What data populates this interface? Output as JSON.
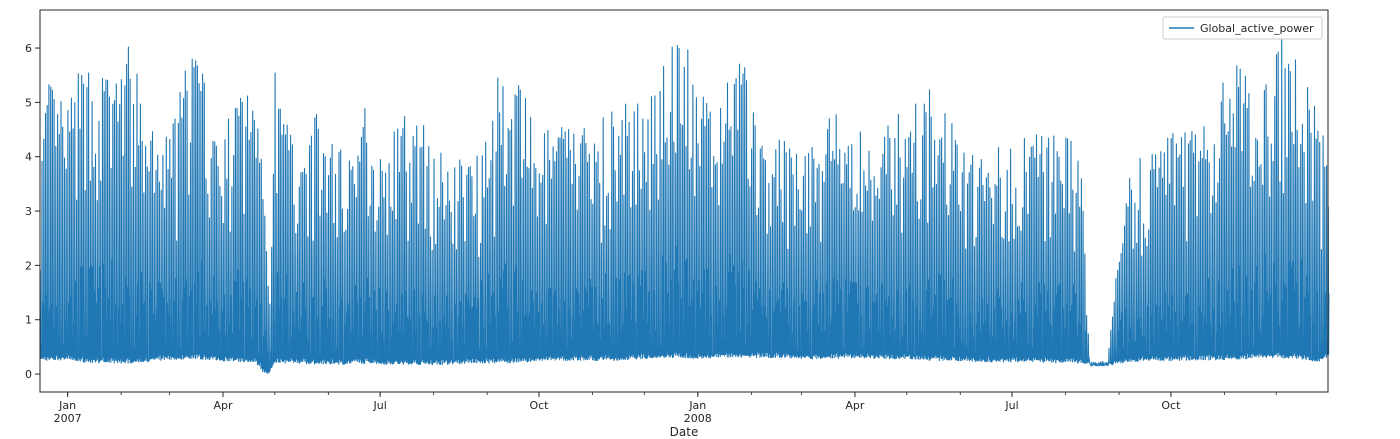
{
  "chart_data": {
    "type": "line",
    "title": "",
    "xlabel": "Date",
    "ylabel": "",
    "x_range": [
      "2006-12-16",
      "2008-12-31"
    ],
    "ylim": [
      -0.33,
      6.7
    ],
    "y_ticks": [
      0,
      1,
      2,
      3,
      4,
      5,
      6
    ],
    "x_ticks": [
      {
        "date": "2007-01-01",
        "label": "Jan",
        "sublabel": "2007"
      },
      {
        "date": "2007-04-01",
        "label": "Apr",
        "sublabel": ""
      },
      {
        "date": "2007-07-01",
        "label": "Jul",
        "sublabel": ""
      },
      {
        "date": "2007-10-01",
        "label": "Oct",
        "sublabel": ""
      },
      {
        "date": "2008-01-01",
        "label": "Jan",
        "sublabel": "2008"
      },
      {
        "date": "2008-04-01",
        "label": "Apr",
        "sublabel": ""
      },
      {
        "date": "2008-07-01",
        "label": "Jul",
        "sublabel": ""
      },
      {
        "date": "2008-10-01",
        "label": "Oct",
        "sublabel": ""
      }
    ],
    "legend": "top-right",
    "grid": false,
    "series": [
      {
        "name": "Global_active_power",
        "color": "#1f77b4",
        "x": [
          "2006-12-16",
          "2006-12-20",
          "2007-01-01",
          "2007-01-10",
          "2007-01-25",
          "2007-02-05",
          "2007-02-20",
          "2007-03-01",
          "2007-03-15",
          "2007-03-30",
          "2007-04-10",
          "2007-04-20",
          "2007-04-25",
          "2007-04-28",
          "2007-05-01",
          "2007-05-10",
          "2007-05-25",
          "2007-06-10",
          "2007-06-25",
          "2007-07-01",
          "2007-07-15",
          "2007-07-30",
          "2007-08-10",
          "2007-08-25",
          "2007-09-10",
          "2007-09-25",
          "2007-10-01",
          "2007-10-15",
          "2007-11-01",
          "2007-11-15",
          "2007-12-01",
          "2007-12-15",
          "2007-12-23",
          "2007-12-28",
          "2008-01-01",
          "2008-01-10",
          "2008-01-25",
          "2008-02-05",
          "2008-02-20",
          "2008-03-01",
          "2008-03-15",
          "2008-04-01",
          "2008-04-15",
          "2008-05-01",
          "2008-05-15",
          "2008-06-01",
          "2008-06-15",
          "2008-07-01",
          "2008-07-15",
          "2008-07-30",
          "2008-08-05",
          "2008-08-10",
          "2008-08-15",
          "2008-08-20",
          "2008-08-25",
          "2008-09-05",
          "2008-09-20",
          "2008-10-05",
          "2008-10-20",
          "2008-11-05",
          "2008-11-20",
          "2008-12-01",
          "2008-12-15",
          "2008-12-25",
          "2008-12-31"
        ],
        "y_max": [
          3.9,
          5.5,
          5.0,
          5.8,
          5.6,
          6.1,
          4.4,
          4.5,
          6.3,
          4.2,
          5.3,
          5.4,
          5.0,
          1.5,
          5.6,
          4.6,
          4.8,
          4.2,
          5.2,
          4.1,
          4.8,
          4.6,
          3.8,
          4.3,
          5.8,
          5.0,
          4.4,
          4.7,
          4.7,
          5.0,
          5.0,
          6.5,
          6.3,
          5.8,
          5.3,
          4.8,
          6.5,
          4.4,
          4.3,
          4.0,
          5.0,
          4.6,
          4.4,
          5.0,
          5.3,
          4.4,
          4.0,
          4.4,
          4.5,
          4.4,
          4.7,
          3.7,
          0.22,
          0.22,
          0.22,
          3.9,
          4.3,
          4.5,
          4.6,
          5.8,
          5.5,
          6.4,
          5.7,
          4.9,
          4.0
        ],
        "y_min": [
          0.26,
          0.25,
          0.26,
          0.22,
          0.2,
          0.2,
          0.24,
          0.26,
          0.28,
          0.25,
          0.22,
          0.2,
          0.0,
          0.0,
          0.2,
          0.2,
          0.18,
          0.18,
          0.2,
          0.18,
          0.18,
          0.17,
          0.18,
          0.2,
          0.2,
          0.22,
          0.25,
          0.25,
          0.25,
          0.25,
          0.28,
          0.3,
          0.3,
          0.28,
          0.28,
          0.3,
          0.3,
          0.3,
          0.3,
          0.28,
          0.28,
          0.3,
          0.28,
          0.28,
          0.25,
          0.24,
          0.22,
          0.22,
          0.22,
          0.2,
          0.2,
          0.18,
          0.15,
          0.15,
          0.15,
          0.22,
          0.24,
          0.25,
          0.26,
          0.26,
          0.3,
          0.3,
          0.28,
          0.22,
          0.3
        ]
      }
    ]
  }
}
